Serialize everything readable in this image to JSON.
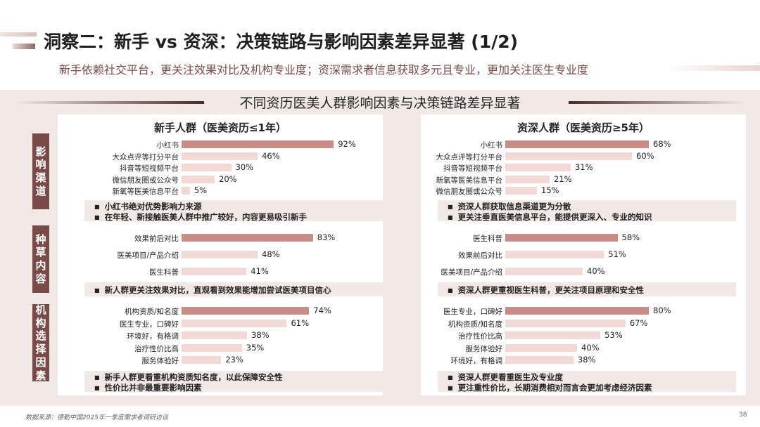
{
  "header": {
    "title": "洞察二：新手 vs 资深：决策链路与影响因素差异显著 (1/2)",
    "subtitle": "新手依赖社交平台，更关注效果对比及机构专业度；资深需求者信息获取多元且专业，更加关注医生专业度"
  },
  "section_title": "不同资历医美人群影响因素与决策链路差异显著",
  "columns": {
    "left_title": "新手人群（医美资历≤1年）",
    "right_title": "资深人群（医美资历≥5年）"
  },
  "side_labels": [
    "影响渠道",
    "种草内容",
    "机构选择因素"
  ],
  "colors": {
    "highlight": "#c98c87",
    "bar": "#f3d9d6",
    "side": "#7a4a48",
    "band": "#f2e9e7"
  },
  "chart_data": [
    {
      "type": "bar",
      "group": "新手人群（医美资历≤1年）",
      "section": "影响渠道",
      "categories": [
        "小红书",
        "大众点评等打分平台",
        "抖音等短视频平台",
        "微信朋友圈或公众号",
        "新氧等医美信息平台"
      ],
      "values": [
        92,
        46,
        30,
        20,
        5
      ],
      "labels": [
        "92%",
        "46%",
        "30%",
        "20%",
        "5%"
      ]
    },
    {
      "type": "bar",
      "group": "资深人群（医美资历≥5年）",
      "section": "影响渠道",
      "categories": [
        "小红书",
        "大众点评等打分平台",
        "抖音等短视频平台",
        "新氧等医美信息平台",
        "微信朋友圈或公众号"
      ],
      "values": [
        68,
        60,
        31,
        21,
        15
      ],
      "labels": [
        "68%",
        "60%",
        "31%",
        "21%",
        "15%"
      ]
    },
    {
      "type": "bar",
      "group": "新手人群（医美资历≤1年）",
      "section": "种草内容",
      "categories": [
        "效果前后对比",
        "医美项目/产品介绍",
        "医生科普"
      ],
      "values": [
        83,
        48,
        41
      ],
      "labels": [
        "83%",
        "48%",
        "41%"
      ]
    },
    {
      "type": "bar",
      "group": "资深人群（医美资历≥5年）",
      "section": "种草内容",
      "categories": [
        "医生科普",
        "效果前后对比",
        "医美项目/产品介绍"
      ],
      "values": [
        58,
        51,
        40
      ],
      "labels": [
        "58%",
        "51%",
        "40%"
      ]
    },
    {
      "type": "bar",
      "group": "新手人群（医美资历≤1年）",
      "section": "机构选择因素",
      "categories": [
        "机构资质/知名度",
        "医生专业，口碑好",
        "环境好，有格调",
        "治疗性价比高",
        "服务体验好"
      ],
      "values": [
        74,
        61,
        38,
        35,
        23
      ],
      "labels": [
        "74%",
        "61%",
        "38%",
        "35%",
        "23%"
      ]
    },
    {
      "type": "bar",
      "group": "资深人群（医美资历≥5年）",
      "section": "机构选择因素",
      "categories": [
        "医生专业，口碑好",
        "机构资质/知名度",
        "治疗性价比高",
        "服务体验好",
        "环境好，有格调"
      ],
      "values": [
        80,
        67,
        53,
        40,
        38
      ],
      "labels": [
        "80%",
        "67%",
        "53%",
        "40%",
        "38%"
      ]
    }
  ],
  "notes": [
    [
      "小红书绝对优势影响力来源",
      "在年轻、新接触医美人群中推广较好，内容更易吸引新手"
    ],
    [
      "资深人群获取信息渠道更为分散",
      "更关注垂直医美信息平台，能提供更深入、专业的知识"
    ],
    [
      "新人群更关注效果对比，直观看到效果能增加尝试医美项目信心"
    ],
    [
      "资深人群更重视医生科普，更关注项目原理和安全性"
    ],
    [
      "新手人群更看重机构资质知名度，以此保障安全性",
      "性价比并非最重要影响因素"
    ],
    [
      "资深人群更看重医生及专业度",
      "更注重性价比，长期消费相对而言会更加考虑经济因素"
    ]
  ],
  "footer": {
    "source": "数据来源：德勤中国2025年一季度需求者调研访谈",
    "page": "38"
  }
}
